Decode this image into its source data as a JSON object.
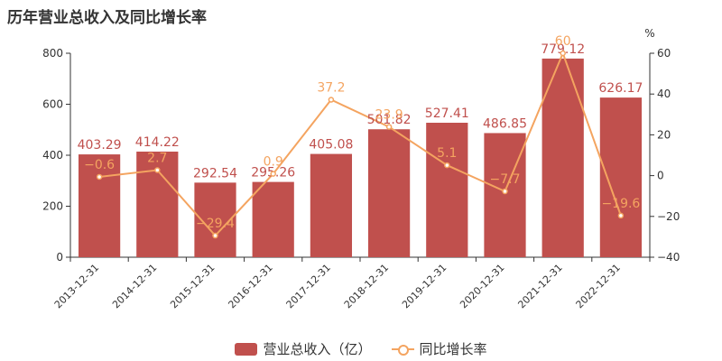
{
  "chart_data": {
    "type": "bar",
    "title": "历年营业总收入及同比增长率",
    "categories": [
      "2013-12-31",
      "2014-12-31",
      "2015-12-31",
      "2016-12-31",
      "2017-12-31",
      "2018-12-31",
      "2019-12-31",
      "2020-12-31",
      "2021-12-31",
      "2022-12-31"
    ],
    "series": [
      {
        "name": "营业总收入（亿）",
        "type": "bar",
        "axis": "left",
        "color": "#c0504d",
        "values": [
          403.29,
          414.22,
          292.54,
          295.26,
          405.08,
          501.82,
          527.41,
          486.85,
          779.12,
          626.17
        ],
        "labels": [
          "403.29",
          "414.22",
          "292.54",
          "295.26",
          "405.08",
          "501.82",
          "527.41",
          "486.85",
          "779.12",
          "626.17"
        ]
      },
      {
        "name": "同比增长率",
        "type": "line",
        "axis": "right",
        "color": "#f4a460",
        "values": [
          -0.6,
          2.7,
          -29.4,
          0.9,
          37.2,
          23.9,
          5.1,
          -7.7,
          60,
          -19.6
        ],
        "labels": [
          "−0.6",
          "2.7",
          "−29.4",
          "0.9",
          "37.2",
          "23.9",
          "5.1",
          "−7.7",
          "60",
          "−19.6"
        ]
      }
    ],
    "y_left": {
      "ylim": [
        0,
        800
      ],
      "ticks": [
        0,
        200,
        400,
        600,
        800
      ]
    },
    "y_right": {
      "ylim": [
        -40,
        60
      ],
      "ticks": [
        -40,
        -20,
        0,
        20,
        40,
        60
      ],
      "unit": "%"
    },
    "legend": "bottom"
  }
}
